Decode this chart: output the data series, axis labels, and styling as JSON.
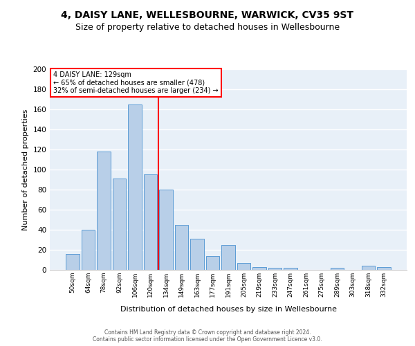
{
  "title": "4, DAISY LANE, WELLESBOURNE, WARWICK, CV35 9ST",
  "subtitle": "Size of property relative to detached houses in Wellesbourne",
  "xlabel": "Distribution of detached houses by size in Wellesbourne",
  "ylabel": "Number of detached properties",
  "footer_line1": "Contains HM Land Registry data © Crown copyright and database right 2024.",
  "footer_line2": "Contains public sector information licensed under the Open Government Licence v3.0.",
  "categories": [
    "50sqm",
    "64sqm",
    "78sqm",
    "92sqm",
    "106sqm",
    "120sqm",
    "134sqm",
    "149sqm",
    "163sqm",
    "177sqm",
    "191sqm",
    "205sqm",
    "219sqm",
    "233sqm",
    "247sqm",
    "261sqm",
    "275sqm",
    "289sqm",
    "303sqm",
    "318sqm",
    "332sqm"
  ],
  "values": [
    16,
    40,
    118,
    91,
    165,
    95,
    80,
    45,
    31,
    14,
    25,
    7,
    3,
    2,
    2,
    0,
    0,
    2,
    0,
    4,
    3
  ],
  "bar_color": "#b8cfe8",
  "bar_edge_color": "#5b9bd5",
  "vline_x": 5.5,
  "vline_color": "red",
  "annotation_text": "4 DAISY LANE: 129sqm\n← 65% of detached houses are smaller (478)\n32% of semi-detached houses are larger (234) →",
  "annotation_box_color": "white",
  "annotation_box_edge_color": "red",
  "ylim": [
    0,
    200
  ],
  "yticks": [
    0,
    20,
    40,
    60,
    80,
    100,
    120,
    140,
    160,
    180,
    200
  ],
  "background_color": "#e8f0f8",
  "grid_color": "white",
  "title_fontsize": 10,
  "subtitle_fontsize": 9
}
